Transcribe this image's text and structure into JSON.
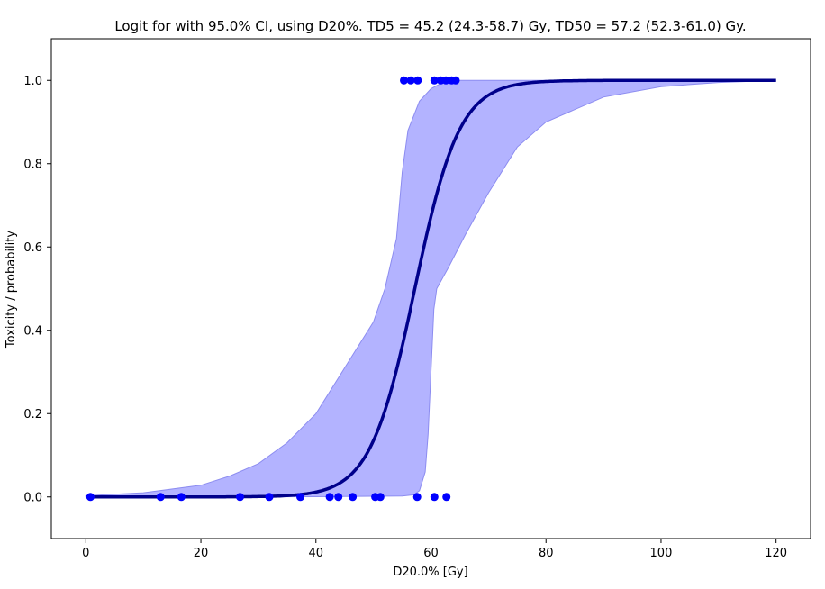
{
  "chart_data": {
    "type": "line",
    "title": "Logit for        with 95.0% CI, using D20%. TD5 = 45.2 (24.3-58.7) Gy, TD50 = 57.2 (52.3-61.0) Gy.",
    "xlabel": "D20.0% [Gy]",
    "ylabel": "Toxicity / probability",
    "xlim": [
      -6,
      126
    ],
    "ylim": [
      -0.1,
      1.1
    ],
    "x_ticks": [
      0,
      20,
      40,
      60,
      80,
      100,
      120
    ],
    "y_ticks": [
      0.0,
      0.2,
      0.4,
      0.6,
      0.8,
      1.0
    ],
    "x_tick_labels": [
      "0",
      "20",
      "40",
      "60",
      "80",
      "100",
      "120"
    ],
    "y_tick_labels": [
      "0.0",
      "0.2",
      "0.4",
      "0.6",
      "0.8",
      "1.0"
    ],
    "grid": false,
    "legend": "none",
    "colors": {
      "fit": "#00008b",
      "ci_fill": "#b3b3ff",
      "ci_edge": "#8c8cf0",
      "points": "#0000ff"
    },
    "series": [
      {
        "kind": "logistic-fit",
        "td50": 57.2,
        "slope": 0.258,
        "x_range": [
          0,
          120
        ]
      },
      {
        "kind": "ci-band",
        "lower": [
          [
            0,
            0
          ],
          [
            20,
            0
          ],
          [
            40,
            0.0005
          ],
          [
            55,
            0.002
          ],
          [
            57,
            0.005
          ],
          [
            58,
            0.015
          ],
          [
            59,
            0.06
          ],
          [
            59.5,
            0.15
          ],
          [
            60,
            0.3
          ],
          [
            60.5,
            0.45
          ],
          [
            61,
            0.5
          ],
          [
            63,
            0.55
          ],
          [
            66,
            0.63
          ],
          [
            70,
            0.73
          ],
          [
            75,
            0.84
          ],
          [
            80,
            0.9
          ],
          [
            90,
            0.96
          ],
          [
            100,
            0.985
          ],
          [
            110,
            0.995
          ],
          [
            120,
            1.0
          ]
        ],
        "upper": [
          [
            0,
            0.003
          ],
          [
            10,
            0.01
          ],
          [
            20,
            0.028
          ],
          [
            25,
            0.05
          ],
          [
            30,
            0.08
          ],
          [
            35,
            0.13
          ],
          [
            40,
            0.2
          ],
          [
            45,
            0.31
          ],
          [
            50,
            0.42
          ],
          [
            52,
            0.5
          ],
          [
            53,
            0.56
          ],
          [
            54,
            0.62
          ],
          [
            55,
            0.78
          ],
          [
            56,
            0.88
          ],
          [
            58,
            0.95
          ],
          [
            60,
            0.98
          ],
          [
            62,
            0.995
          ],
          [
            65,
            1.0
          ],
          [
            120,
            1.0
          ]
        ]
      },
      {
        "kind": "observations",
        "x": [
          0.8,
          13.0,
          16.6,
          26.8,
          31.9,
          37.3,
          42.4,
          43.9,
          46.4,
          50.3,
          51.2,
          57.6,
          60.6,
          62.7,
          55.3,
          56.5,
          57.7,
          60.6,
          61.7,
          62.6,
          63.6,
          64.3
        ],
        "y": [
          0,
          0,
          0,
          0,
          0,
          0,
          0,
          0,
          0,
          0,
          0,
          0,
          0,
          0,
          1,
          1,
          1,
          1,
          1,
          1,
          1,
          1
        ]
      }
    ]
  }
}
